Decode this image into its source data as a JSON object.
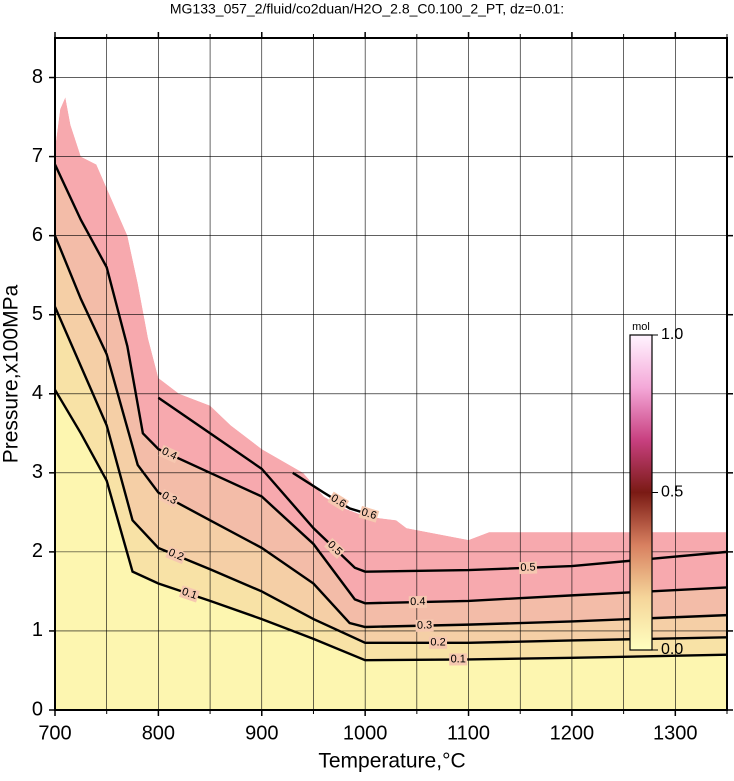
{
  "chart_data": {
    "type": "contour",
    "title": "MG133_057_2/fluid/co2duan/H2O_2.8_C0.100_2_PT, dz=0.01:",
    "xlabel": "Temperature,°C",
    "ylabel": "Pressure,x100MPa",
    "xlim": [
      700,
      1350
    ],
    "ylim": [
      0,
      8.5
    ],
    "xticks": [
      700,
      800,
      900,
      1000,
      1100,
      1200,
      1300
    ],
    "x_minor_ticks": [
      750,
      850,
      950,
      1050,
      1150,
      1250,
      1350
    ],
    "yticks": [
      0,
      1,
      2,
      3,
      4,
      5,
      6,
      7,
      8
    ],
    "grid": true,
    "domain": {
      "x": [
        700,
        705,
        710,
        715,
        725,
        740,
        750,
        770,
        780,
        790,
        800,
        820,
        850,
        870,
        900,
        940,
        960,
        980,
        1000,
        1030,
        1040,
        1100,
        1120,
        1350
      ],
      "y": [
        7.1,
        7.6,
        7.75,
        7.4,
        7.0,
        6.9,
        6.6,
        6.0,
        5.4,
        4.7,
        4.2,
        4.0,
        3.85,
        3.6,
        3.3,
        3.0,
        2.7,
        2.55,
        2.45,
        2.4,
        2.3,
        2.15,
        2.25,
        2.25
      ]
    },
    "contours": [
      {
        "level": 0.1,
        "x": [
          700,
          725,
          750,
          775,
          800,
          850,
          900,
          950,
          1000,
          1100,
          1200,
          1350
        ],
        "y": [
          4.05,
          3.5,
          2.9,
          1.75,
          1.6,
          1.38,
          1.15,
          0.9,
          0.63,
          0.64,
          0.66,
          0.7
        ]
      },
      {
        "level": 0.2,
        "x": [
          700,
          725,
          750,
          775,
          800,
          850,
          900,
          950,
          1000,
          1100,
          1200,
          1350
        ],
        "y": [
          5.1,
          4.35,
          3.6,
          2.4,
          2.05,
          1.78,
          1.5,
          1.15,
          0.85,
          0.85,
          0.88,
          0.92
        ]
      },
      {
        "level": 0.3,
        "x": [
          700,
          725,
          750,
          780,
          800,
          850,
          900,
          950,
          985,
          1000,
          1100,
          1200,
          1350
        ],
        "y": [
          6.0,
          5.2,
          4.5,
          3.1,
          2.75,
          2.4,
          2.05,
          1.6,
          1.1,
          1.05,
          1.08,
          1.12,
          1.2
        ]
      },
      {
        "level": 0.4,
        "x": [
          700,
          725,
          750,
          770,
          785,
          800,
          850,
          900,
          950,
          990,
          1000,
          1100,
          1200,
          1350
        ],
        "y": [
          6.9,
          6.2,
          5.6,
          4.6,
          3.5,
          3.3,
          3.0,
          2.7,
          2.1,
          1.4,
          1.35,
          1.38,
          1.45,
          1.55
        ]
      },
      {
        "level": 0.5,
        "x": [
          800,
          850,
          900,
          950,
          990,
          1000,
          1100,
          1200,
          1350
        ],
        "y": [
          3.95,
          3.5,
          3.05,
          2.3,
          1.8,
          1.75,
          1.77,
          1.82,
          2.0
        ]
      },
      {
        "level": 0.6,
        "x": [
          930,
          960,
          985,
          1010
        ],
        "y": [
          3.0,
          2.75,
          2.55,
          2.45
        ]
      }
    ],
    "colorbar": {
      "label": "mol",
      "lim": [
        0,
        1
      ],
      "ticks": [
        {
          "value": 0,
          "label": "0.0"
        },
        0.5,
        {
          "value": 1,
          "label": "1.0"
        }
      ],
      "colors": [
        "#ffffbf",
        "#f5d59a",
        "#d88060",
        "#7a1a14",
        "#c84080",
        "#f4a8d8",
        "#fff4ff"
      ]
    }
  }
}
